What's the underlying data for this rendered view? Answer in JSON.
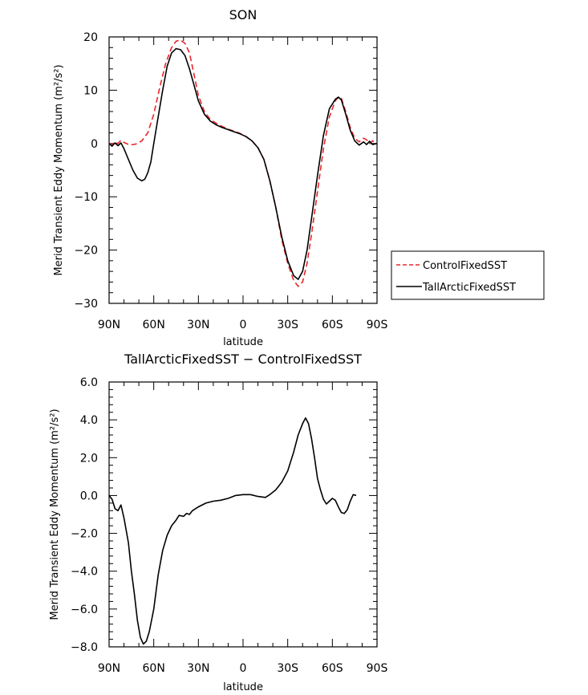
{
  "chart_data": [
    {
      "type": "line",
      "title": "SON",
      "xlabel": "latitude",
      "ylabel": "Merid Transient Eddy Momentum (m²/s²)",
      "xlim": [
        -90,
        90
      ],
      "ylim": [
        -30,
        20
      ],
      "x_direction": "north-to-south (90N left, 90S right)",
      "xticks": [
        -90,
        -60,
        -30,
        0,
        30,
        60,
        90
      ],
      "xtick_labels": [
        "90N",
        "60N",
        "30N",
        "0",
        "30S",
        "60S",
        "90S"
      ],
      "yticks": [
        -30,
        -20,
        -10,
        0,
        10,
        20
      ],
      "ytick_labels": [
        "−30",
        "−20",
        "−10",
        "0",
        "10",
        "20"
      ],
      "legend_position": "right-of-plot, lower",
      "series": [
        {
          "name": "ControlFixedSST",
          "color": "#e8262a",
          "dash": "dashed",
          "points": [
            [
              -90,
              0
            ],
            [
              -88,
              -0.2
            ],
            [
              -86,
              0.3
            ],
            [
              -84,
              0
            ],
            [
              -82,
              0.6
            ],
            [
              -80,
              0.2
            ],
            [
              -76,
              -0.3
            ],
            [
              -72,
              -0.1
            ],
            [
              -68,
              0.5
            ],
            [
              -64,
              2
            ],
            [
              -60,
              5.5
            ],
            [
              -56,
              10.5
            ],
            [
              -52,
              15
            ],
            [
              -48,
              18
            ],
            [
              -45,
              19.2
            ],
            [
              -42,
              19.4
            ],
            [
              -39,
              18.8
            ],
            [
              -36,
              17
            ],
            [
              -33,
              13
            ],
            [
              -30,
              9
            ],
            [
              -26,
              6
            ],
            [
              -22,
              4.5
            ],
            [
              -18,
              3.8
            ],
            [
              -14,
              3.2
            ],
            [
              -10,
              2.7
            ],
            [
              -6,
              2.3
            ],
            [
              -2,
              1.9
            ],
            [
              2,
              1.3
            ],
            [
              6,
              0.5
            ],
            [
              10,
              -0.8
            ],
            [
              14,
              -3
            ],
            [
              18,
              -7
            ],
            [
              22,
              -12
            ],
            [
              26,
              -18
            ],
            [
              30,
              -22.5
            ],
            [
              34,
              -25.7
            ],
            [
              37,
              -26.8
            ],
            [
              40,
              -26
            ],
            [
              43,
              -22.5
            ],
            [
              46,
              -17
            ],
            [
              50,
              -9
            ],
            [
              54,
              -1
            ],
            [
              58,
              5
            ],
            [
              62,
              8
            ],
            [
              64,
              8.7
            ],
            [
              66,
              8.5
            ],
            [
              69,
              6
            ],
            [
              72,
              3
            ],
            [
              75,
              1
            ],
            [
              78,
              0.3
            ],
            [
              81,
              1
            ],
            [
              83,
              0.7
            ],
            [
              85,
              0
            ],
            [
              87,
              0.5
            ],
            [
              90,
              0
            ]
          ]
        },
        {
          "name": "TallArcticFixedSST",
          "color": "#000000",
          "dash": "solid",
          "points": [
            [
              -90,
              0
            ],
            [
              -88,
              -0.5
            ],
            [
              -86,
              0.1
            ],
            [
              -84,
              -0.4
            ],
            [
              -82,
              0.1
            ],
            [
              -80,
              -1
            ],
            [
              -77,
              -3
            ],
            [
              -74,
              -5
            ],
            [
              -71,
              -6.5
            ],
            [
              -68,
              -7
            ],
            [
              -66,
              -6.7
            ],
            [
              -64,
              -5.5
            ],
            [
              -62,
              -3.5
            ],
            [
              -60,
              0
            ],
            [
              -57,
              5
            ],
            [
              -54,
              10
            ],
            [
              -51,
              14.5
            ],
            [
              -48,
              17
            ],
            [
              -45,
              17.8
            ],
            [
              -42,
              17.6
            ],
            [
              -39,
              16.5
            ],
            [
              -36,
              14
            ],
            [
              -33,
              11
            ],
            [
              -30,
              8
            ],
            [
              -26,
              5.5
            ],
            [
              -22,
              4.2
            ],
            [
              -18,
              3.5
            ],
            [
              -14,
              3
            ],
            [
              -10,
              2.6
            ],
            [
              -6,
              2.2
            ],
            [
              -2,
              1.8
            ],
            [
              2,
              1.3
            ],
            [
              6,
              0.5
            ],
            [
              10,
              -0.8
            ],
            [
              14,
              -3
            ],
            [
              18,
              -7
            ],
            [
              22,
              -12
            ],
            [
              26,
              -17.5
            ],
            [
              30,
              -22
            ],
            [
              34,
              -24.8
            ],
            [
              37,
              -25.5
            ],
            [
              40,
              -24
            ],
            [
              43,
              -20
            ],
            [
              46,
              -14
            ],
            [
              50,
              -6
            ],
            [
              54,
              1.5
            ],
            [
              58,
              6.5
            ],
            [
              62,
              8.3
            ],
            [
              64,
              8.7
            ],
            [
              66,
              8.2
            ],
            [
              69,
              5.5
            ],
            [
              72,
              2.5
            ],
            [
              75,
              0.5
            ],
            [
              78,
              -0.3
            ],
            [
              81,
              0.3
            ],
            [
              83,
              -0.2
            ],
            [
              85,
              0.4
            ],
            [
              87,
              -0.2
            ],
            [
              90,
              0
            ]
          ]
        }
      ]
    },
    {
      "type": "line",
      "title": "TallArcticFixedSST − ControlFixedSST",
      "xlabel": "latitude",
      "ylabel": "Merid Transient Eddy Momentum (m²/s²)",
      "xlim": [
        -90,
        90
      ],
      "ylim": [
        -8,
        6
      ],
      "x_direction": "north-to-south (90N left, 90S right)",
      "xticks": [
        -90,
        -60,
        -30,
        0,
        30,
        60,
        90
      ],
      "xtick_labels": [
        "90N",
        "60N",
        "30N",
        "0",
        "30S",
        "60S",
        "90S"
      ],
      "yticks": [
        -8,
        -6,
        -4,
        -2,
        0,
        2,
        4,
        6
      ],
      "ytick_labels": [
        "−8.0",
        "−6.0",
        "−4.0",
        "−2.0",
        "0.0",
        "2.0",
        "4.0",
        "6.0"
      ],
      "series": [
        {
          "color": "#000000",
          "dash": "solid",
          "points": [
            [
              -90,
              0
            ],
            [
              -88,
              -0.2
            ],
            [
              -86,
              -0.7
            ],
            [
              -84,
              -0.8
            ],
            [
              -82,
              -0.5
            ],
            [
              -80,
              -1.2
            ],
            [
              -77,
              -2.5
            ],
            [
              -75,
              -4
            ],
            [
              -73,
              -5.2
            ],
            [
              -71,
              -6.6
            ],
            [
              -69,
              -7.5
            ],
            [
              -67,
              -7.85
            ],
            [
              -65,
              -7.7
            ],
            [
              -63,
              -7.2
            ],
            [
              -60,
              -6
            ],
            [
              -57,
              -4.2
            ],
            [
              -54,
              -2.9
            ],
            [
              -51,
              -2.1
            ],
            [
              -48,
              -1.6
            ],
            [
              -45,
              -1.3
            ],
            [
              -43,
              -1.05
            ],
            [
              -40,
              -1.1
            ],
            [
              -38,
              -0.95
            ],
            [
              -36,
              -1.0
            ],
            [
              -34,
              -0.8
            ],
            [
              -30,
              -0.6
            ],
            [
              -25,
              -0.4
            ],
            [
              -20,
              -0.3
            ],
            [
              -15,
              -0.25
            ],
            [
              -10,
              -0.15
            ],
            [
              -5,
              0
            ],
            [
              0,
              0.05
            ],
            [
              5,
              0.05
            ],
            [
              10,
              -0.05
            ],
            [
              15,
              -0.1
            ],
            [
              18,
              0.05
            ],
            [
              22,
              0.3
            ],
            [
              26,
              0.7
            ],
            [
              30,
              1.3
            ],
            [
              34,
              2.3
            ],
            [
              37,
              3.2
            ],
            [
              40,
              3.8
            ],
            [
              42,
              4.1
            ],
            [
              44,
              3.8
            ],
            [
              46,
              3.0
            ],
            [
              48,
              2.0
            ],
            [
              50,
              0.9
            ],
            [
              52,
              0.3
            ],
            [
              54,
              -0.2
            ],
            [
              56,
              -0.45
            ],
            [
              58,
              -0.3
            ],
            [
              60,
              -0.15
            ],
            [
              62,
              -0.25
            ],
            [
              64,
              -0.6
            ],
            [
              66,
              -0.9
            ],
            [
              68,
              -0.95
            ],
            [
              70,
              -0.75
            ],
            [
              72,
              -0.3
            ],
            [
              74,
              0.05
            ],
            [
              76,
              0
            ]
          ]
        }
      ]
    }
  ]
}
